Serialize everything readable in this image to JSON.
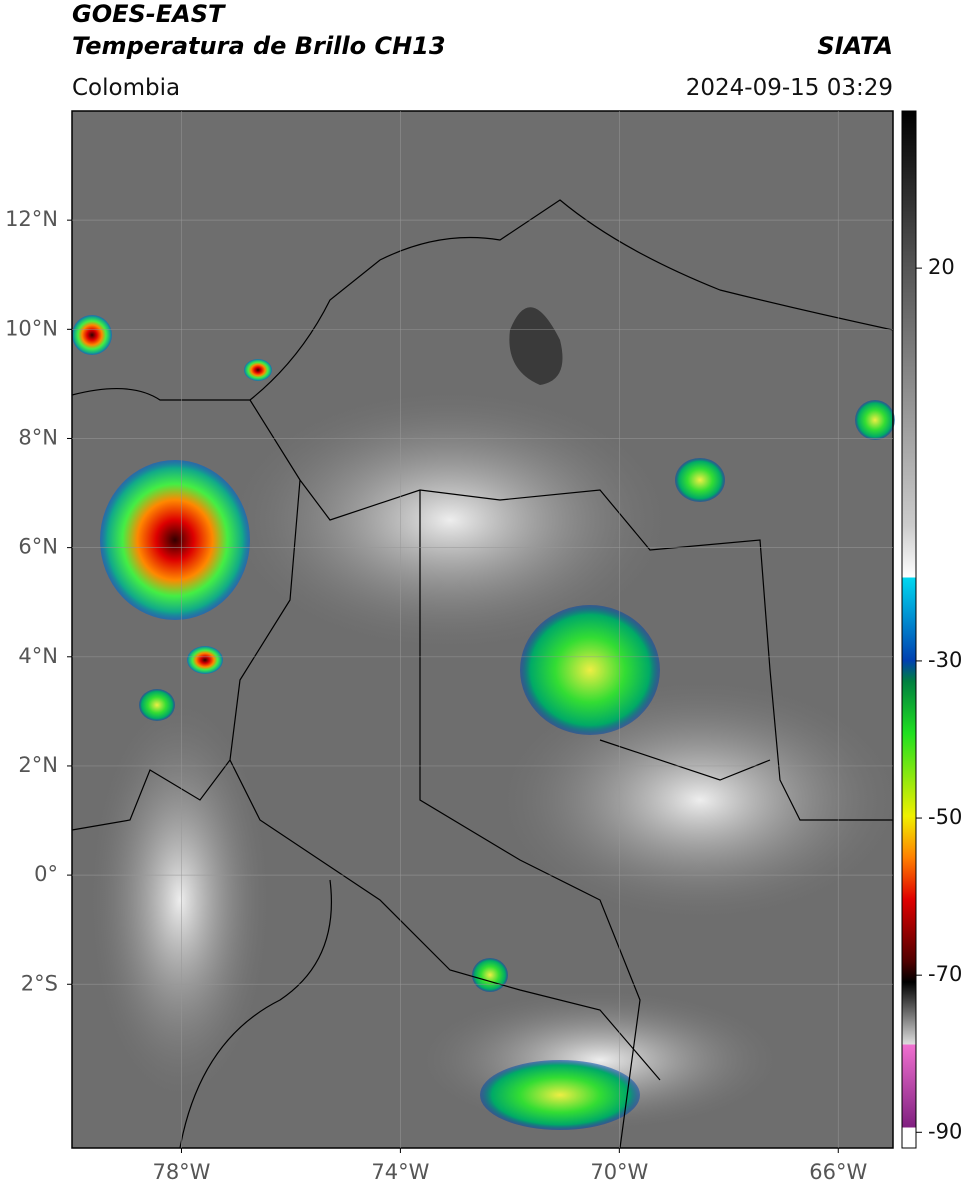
{
  "header": {
    "title": "GOES-EAST",
    "subtitle": "Temperatura de Brillo CH13",
    "region": "Colombia",
    "source": "SIATA",
    "datetime": "2024-09-15 03:29"
  },
  "map": {
    "xlim": [
      -80,
      -65
    ],
    "ylim": [
      -5,
      14
    ],
    "xticks": [
      {
        "value": -78,
        "label": "78°W"
      },
      {
        "value": -74,
        "label": "74°W"
      },
      {
        "value": -70,
        "label": "70°W"
      },
      {
        "value": -66,
        "label": "66°W"
      }
    ],
    "yticks": [
      {
        "value": 12,
        "label": "12°N"
      },
      {
        "value": 10,
        "label": "10°N"
      },
      {
        "value": 8,
        "label": "8°N"
      },
      {
        "value": 6,
        "label": "6°N"
      },
      {
        "value": 4,
        "label": "4°N"
      },
      {
        "value": 2,
        "label": "2°N"
      },
      {
        "value": 0,
        "label": "0°"
      },
      {
        "value": -2,
        "label": "2°S"
      }
    ],
    "grid": true
  },
  "colorbar": {
    "lim": [
      -92,
      40
    ],
    "ticks": [
      20,
      -30,
      -50,
      -70,
      -90
    ]
  }
}
